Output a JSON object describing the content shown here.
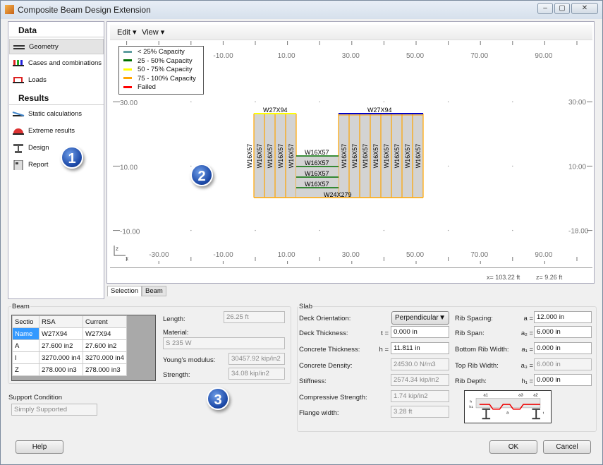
{
  "window": {
    "title": "Composite Beam Design Extension",
    "controls": [
      "–",
      "▢",
      "✕"
    ]
  },
  "sidebar": {
    "data_heading": "Data",
    "data_items": [
      {
        "label": "Geometry",
        "icon": "geometry-icon",
        "selected": true
      },
      {
        "label": "Cases and combinations",
        "icon": "cases-icon"
      },
      {
        "label": "Loads",
        "icon": "loads-icon"
      }
    ],
    "results_heading": "Results",
    "results_items": [
      {
        "label": "Static calculations",
        "icon": "static-calc-icon"
      },
      {
        "label": "Extreme results",
        "icon": "extreme-results-icon"
      },
      {
        "label": "Design",
        "icon": "design-icon"
      },
      {
        "label": "Report",
        "icon": "report-icon"
      }
    ]
  },
  "badges": [
    "1",
    "2",
    "3"
  ],
  "toolbar": {
    "edit": "Edit",
    "view": "View"
  },
  "legend": [
    {
      "label": "< 25% Capacity",
      "color": "#5f9ea0"
    },
    {
      "label": "25 - 50% Capacity",
      "color": "#007000"
    },
    {
      "label": "50 - 75% Capacity",
      "color": "#ffff00"
    },
    {
      "label": "75 - 100% Capacity",
      "color": "#ffa500"
    },
    {
      "label": "Failed",
      "color": "#ff0000"
    }
  ],
  "axes": {
    "x_ticks": [
      "-30.00",
      "-10.00",
      "10.00",
      "30.00",
      "50.00",
      "70.00",
      "90.00"
    ],
    "y_ticks": [
      "30.00",
      "10.00",
      "-10.00"
    ],
    "x_axis": "x",
    "z_axis": "z"
  },
  "model": {
    "top_left_beam": "W27X94",
    "top_right_beam": "W27X94",
    "bottom_beam": "W24X279",
    "column_label": "W16X57",
    "middle_beam_label": "W16X57",
    "colors": {
      "column_edge": "#ffa500",
      "fill": "#d3d3d3",
      "top_left": "#ffff00",
      "top_right": "#0000cc",
      "middle": "#007000"
    }
  },
  "status": {
    "x": "x= 103.22 ft",
    "z": "z= 9.26 ft"
  },
  "tabs": [
    "Selection",
    "Beam"
  ],
  "beam": {
    "group": "Beam",
    "table": {
      "headers": [
        "Sectio",
        "RSA",
        "Current"
      ],
      "rows": [
        [
          "Name",
          "W27X94",
          "W27X94"
        ],
        [
          "A",
          "27.600 in2",
          "27.600 in2"
        ],
        [
          "I",
          "3270.000 in4",
          "3270.000 in4"
        ],
        [
          "Z",
          "278.000 in3",
          "278.000 in3"
        ]
      ]
    },
    "length_label": "Length:",
    "length": "26.25 ft",
    "material_label": "Material:",
    "material": "S 235 W",
    "young_label": "Young's modulus:",
    "young": "30457.92 kip/in2",
    "strength_label": "Strength:",
    "strength": "34.08 kip/in2"
  },
  "support": {
    "label": "Support Condition",
    "value": "Simply Supported"
  },
  "slab": {
    "group": "Slab",
    "left": [
      {
        "label": "Deck Orientation:",
        "sym": "",
        "value": "Perpendicular",
        "type": "select"
      },
      {
        "label": "Deck Thickness:",
        "sym": "t =",
        "value": "0.000 in",
        "type": "edit"
      },
      {
        "label": "Concrete Thickness:",
        "sym": "h =",
        "value": "11.811 in",
        "type": "edit"
      },
      {
        "label": "Concrete Density:",
        "sym": "",
        "value": "24530.0 N/m3",
        "type": "ro"
      },
      {
        "label": "Stiffness:",
        "sym": "",
        "value": "2574.34 kip/in2",
        "type": "ro"
      },
      {
        "label": "Compressive Strength:",
        "sym": "",
        "value": "1.74 kip/in2",
        "type": "ro"
      },
      {
        "label": "Flange width:",
        "sym": "",
        "value": "3.28 ft",
        "type": "ro"
      }
    ],
    "right": [
      {
        "label": "Rib Spacing:",
        "sym": "a =",
        "value": "12.000 in",
        "type": "edit"
      },
      {
        "label": "Rib Span:",
        "sym": "a₂ =",
        "value": "6.000 in",
        "type": "edit"
      },
      {
        "label": "Bottom Rib Width:",
        "sym": "a₁ =",
        "value": "0.000 in",
        "type": "edit"
      },
      {
        "label": "Top Rib Width:",
        "sym": "a₃ =",
        "value": "6.000 in",
        "type": "ro"
      },
      {
        "label": "Rib Depth:",
        "sym": "h₁ =",
        "value": "0.000 in",
        "type": "edit"
      }
    ],
    "diagram_labels": [
      "a1",
      "a3",
      "a2",
      "h",
      "h1",
      "a",
      "t"
    ]
  },
  "buttons": {
    "help": "Help",
    "ok": "OK",
    "cancel": "Cancel"
  }
}
